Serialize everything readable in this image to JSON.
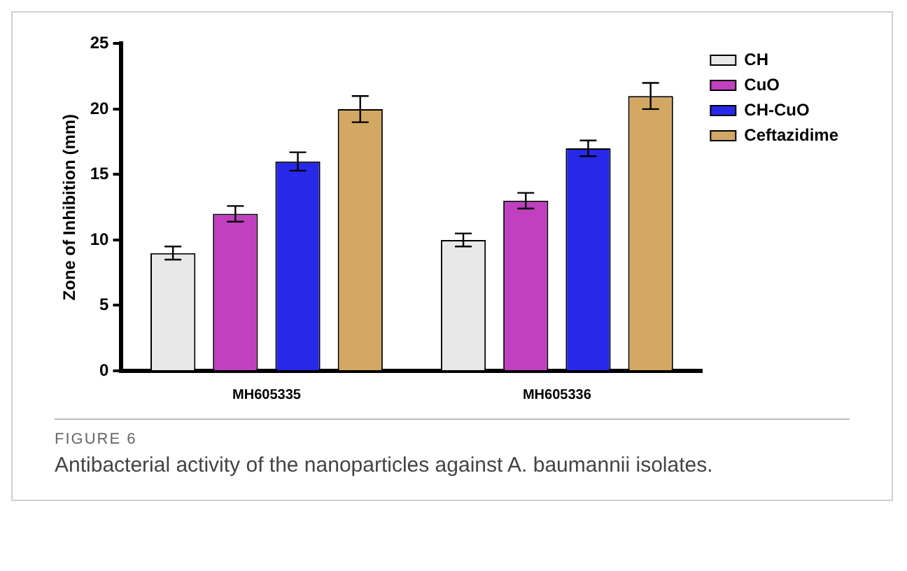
{
  "chart_data": {
    "type": "bar",
    "categories": [
      "MH605335",
      "MH605336"
    ],
    "ylabel": "Zone of Inhibition (mm)",
    "ylim": [
      0,
      25
    ],
    "yticks": [
      0,
      5,
      10,
      15,
      20,
      25
    ],
    "grid": false,
    "legend": "top right",
    "series": [
      {
        "name": "CH",
        "color": "#e8e8e8",
        "values": [
          9,
          10
        ],
        "errors": [
          0.5,
          0.5
        ]
      },
      {
        "name": "CuO",
        "color": "#c040c0",
        "values": [
          12,
          13
        ],
        "errors": [
          0.6,
          0.6
        ]
      },
      {
        "name": "CH-CuO",
        "color": "#2828e8",
        "values": [
          16,
          17
        ],
        "errors": [
          0.7,
          0.6
        ]
      },
      {
        "name": "Ceftazidime",
        "color": "#d2a864",
        "values": [
          20,
          21
        ],
        "errors": [
          1,
          1
        ]
      }
    ],
    "annotations": [
      "FIGURE 6",
      "Antibacterial activity of the nanoparticles against A. baumannii isolates."
    ]
  }
}
